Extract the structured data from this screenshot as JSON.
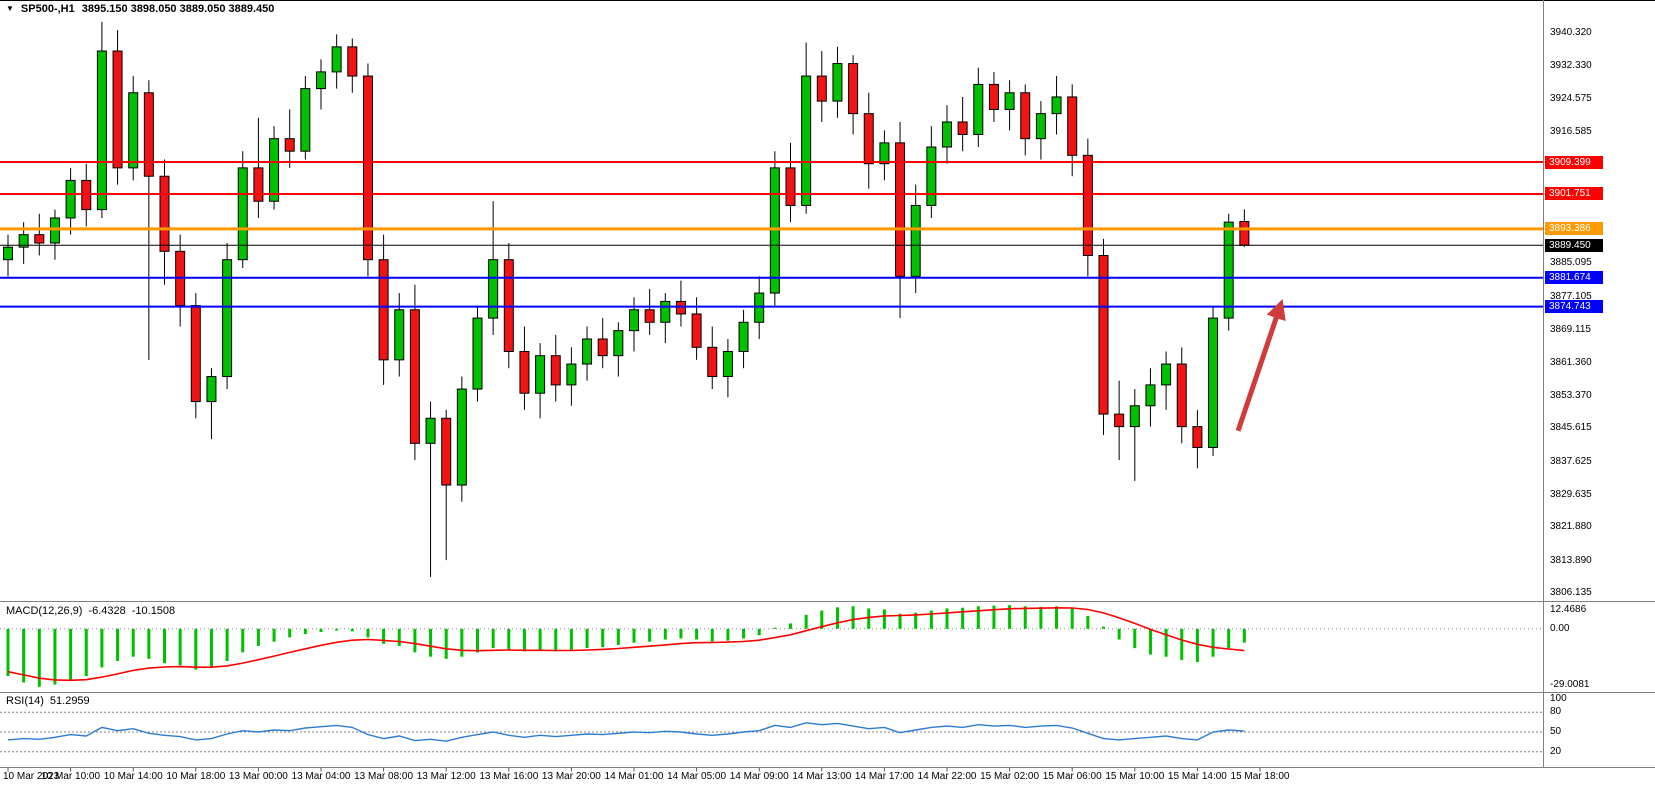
{
  "header": {
    "dropdown_icon": "▼",
    "symbol": "SP500-,H1",
    "ohlc": "3895.150 3898.050 3889.050 3889.450"
  },
  "colors": {
    "background": "#FFFFFF",
    "bull": "#00C000",
    "bear": "#F01414",
    "outline": "#000000",
    "macd_histogram": "#00C000",
    "macd_signal": "#FF0000",
    "rsi_line": "#2B7CD3",
    "arrow": "#D23B3B",
    "separator": "#808080"
  },
  "chart_data": {
    "type": "candlestick",
    "title": "SP500-,H1",
    "timeframe": "H1",
    "legend_position": "none",
    "grid": "off",
    "price_range": [
      3806.135,
      3940.32
    ],
    "candles": [
      [
        3886,
        3892,
        3882,
        3889
      ],
      [
        3889,
        3895,
        3885,
        3892
      ],
      [
        3892,
        3897,
        3887,
        3890
      ],
      [
        3890,
        3898,
        3886,
        3896
      ],
      [
        3896,
        3908,
        3892,
        3905
      ],
      [
        3905,
        3909,
        3894,
        3898
      ],
      [
        3898,
        3943,
        3896,
        3936
      ],
      [
        3936,
        3941,
        3904,
        3908
      ],
      [
        3908,
        3930,
        3905,
        3926
      ],
      [
        3926,
        3929,
        3862,
        3906
      ],
      [
        3906,
        3910,
        3880,
        3888
      ],
      [
        3888,
        3892,
        3870,
        3875
      ],
      [
        3875,
        3878,
        3848,
        3852
      ],
      [
        3852,
        3860,
        3843,
        3858
      ],
      [
        3858,
        3890,
        3855,
        3886
      ],
      [
        3886,
        3912,
        3884,
        3908
      ],
      [
        3908,
        3920,
        3896,
        3900
      ],
      [
        3900,
        3918,
        3898,
        3915
      ],
      [
        3915,
        3922,
        3908,
        3912
      ],
      [
        3912,
        3930,
        3910,
        3927
      ],
      [
        3927,
        3934,
        3922,
        3931
      ],
      [
        3931,
        3940,
        3927,
        3937
      ],
      [
        3937,
        3939,
        3926,
        3930
      ],
      [
        3930,
        3933,
        3882,
        3886
      ],
      [
        3886,
        3892,
        3856,
        3862
      ],
      [
        3862,
        3878,
        3858,
        3874
      ],
      [
        3874,
        3880,
        3838,
        3842
      ],
      [
        3842,
        3852,
        3810,
        3848
      ],
      [
        3848,
        3850,
        3814,
        3832
      ],
      [
        3832,
        3858,
        3828,
        3855
      ],
      [
        3855,
        3875,
        3852,
        3872
      ],
      [
        3872,
        3900,
        3868,
        3886
      ],
      [
        3886,
        3890,
        3860,
        3864
      ],
      [
        3864,
        3870,
        3850,
        3854
      ],
      [
        3854,
        3866,
        3848,
        3863
      ],
      [
        3863,
        3868,
        3852,
        3856
      ],
      [
        3856,
        3865,
        3851,
        3861
      ],
      [
        3861,
        3870,
        3857,
        3867
      ],
      [
        3867,
        3872,
        3860,
        3863
      ],
      [
        3863,
        3871,
        3858,
        3869
      ],
      [
        3869,
        3877,
        3864,
        3874
      ],
      [
        3874,
        3879,
        3868,
        3871
      ],
      [
        3871,
        3878,
        3866,
        3876
      ],
      [
        3876,
        3881,
        3870,
        3873
      ],
      [
        3873,
        3877,
        3862,
        3865
      ],
      [
        3865,
        3870,
        3855,
        3858
      ],
      [
        3858,
        3867,
        3853,
        3864
      ],
      [
        3864,
        3874,
        3860,
        3871
      ],
      [
        3871,
        3882,
        3867,
        3878
      ],
      [
        3878,
        3912,
        3875,
        3908
      ],
      [
        3908,
        3914,
        3895,
        3899
      ],
      [
        3899,
        3938,
        3897,
        3930
      ],
      [
        3930,
        3936,
        3919,
        3924
      ],
      [
        3924,
        3937,
        3920,
        3933
      ],
      [
        3933,
        3935,
        3916,
        3921
      ],
      [
        3921,
        3926,
        3903,
        3909
      ],
      [
        3909,
        3917,
        3905,
        3914
      ],
      [
        3914,
        3919,
        3872,
        3882
      ],
      [
        3882,
        3904,
        3878,
        3899
      ],
      [
        3899,
        3918,
        3896,
        3913
      ],
      [
        3913,
        3923,
        3909,
        3919
      ],
      [
        3919,
        3925,
        3912,
        3916
      ],
      [
        3916,
        3932,
        3913,
        3928
      ],
      [
        3928,
        3931,
        3919,
        3922
      ],
      [
        3922,
        3929,
        3917,
        3926
      ],
      [
        3926,
        3928,
        3911,
        3915
      ],
      [
        3915,
        3924,
        3910,
        3921
      ],
      [
        3921,
        3930,
        3916,
        3925
      ],
      [
        3925,
        3928,
        3906,
        3911
      ],
      [
        3911,
        3915,
        3882,
        3887
      ],
      [
        3887,
        3891,
        3844,
        3849
      ],
      [
        3849,
        3857,
        3838,
        3846
      ],
      [
        3846,
        3855,
        3833,
        3851
      ],
      [
        3851,
        3860,
        3846,
        3856
      ],
      [
        3856,
        3864,
        3850,
        3861
      ],
      [
        3861,
        3865,
        3842,
        3846
      ],
      [
        3846,
        3850,
        3836,
        3841
      ],
      [
        3841,
        3875,
        3839,
        3872
      ],
      [
        3872,
        3897,
        3869,
        3895
      ],
      [
        3895.15,
        3898.05,
        3889.05,
        3889.45
      ]
    ],
    "time_labels": [
      "10 Mar 2023",
      "10 Mar 10:00",
      "10 Mar 14:00",
      "10 Mar 18:00",
      "13 Mar 00:00",
      "13 Mar 04:00",
      "13 Mar 08:00",
      "13 Mar 12:00",
      "13 Mar 16:00",
      "13 Mar 20:00",
      "14 Mar 01:00",
      "14 Mar 05:00",
      "14 Mar 09:00",
      "14 Mar 13:00",
      "14 Mar 17:00",
      "14 Mar 22:00",
      "15 Mar 02:00",
      "15 Mar 06:00",
      "15 Mar 10:00",
      "15 Mar 14:00",
      "15 Mar 18:00"
    ],
    "price_axis_ticks": [
      "3940.320",
      "3932.330",
      "3924.575",
      "3916.585",
      "3885.095",
      "3877.105",
      "3869.115",
      "3861.360",
      "3853.370",
      "3845.615",
      "3837.625",
      "3829.635",
      "3821.880",
      "3813.890",
      "3806.135"
    ],
    "price_badges": [
      {
        "value": "3909.399",
        "color": "#FF0000"
      },
      {
        "value": "3901.751",
        "color": "#FF0000"
      },
      {
        "value": "3893.386",
        "color": "#FF9900"
      },
      {
        "value": "3889.450",
        "color": "#000000"
      },
      {
        "value": "3881.674",
        "color": "#0000FF"
      },
      {
        "value": "3874.743",
        "color": "#0000FF"
      }
    ],
    "levels": [
      {
        "price": 3909.399,
        "color": "#FF0000",
        "width": 2
      },
      {
        "price": 3901.751,
        "color": "#FF0000",
        "width": 2
      },
      {
        "price": 3893.386,
        "color": "#FF9900",
        "width": 3
      },
      {
        "price": 3889.45,
        "color": "#000000",
        "width": 1
      },
      {
        "price": 3881.674,
        "color": "#0000FF",
        "width": 2
      },
      {
        "price": 3874.743,
        "color": "#0000FF",
        "width": 2
      }
    ],
    "arrow": {
      "from_bar": 78.6,
      "from_price": 3845,
      "to_bar": 81.3,
      "to_price": 3875,
      "color": "#D23B3B"
    },
    "indicators": {
      "macd": {
        "name": "MACD(12,26,9)",
        "current_macd": "-6.4328",
        "current_signal": "-10.1508",
        "axis_labels": [
          "12.4686",
          "0.00",
          "-29.0081"
        ],
        "histogram": [
          -22,
          -25,
          -27,
          -26,
          -24,
          -22,
          -18,
          -15,
          -13,
          -14,
          -16,
          -17,
          -19,
          -18,
          -15,
          -11,
          -8,
          -6,
          -4,
          -2.5,
          -1.5,
          -0.8,
          -1.2,
          -4,
          -7,
          -8,
          -11,
          -13,
          -14,
          -13,
          -11,
          -9,
          -9.5,
          -10.5,
          -10,
          -10.5,
          -10,
          -9,
          -8.5,
          -7.5,
          -6.5,
          -6,
          -5,
          -4.5,
          -5,
          -6,
          -5.5,
          -4.5,
          -3,
          0.5,
          2.5,
          6.5,
          8.5,
          10,
          10.5,
          9.5,
          9,
          7,
          7.5,
          8.5,
          9.5,
          9.8,
          10.5,
          10.8,
          11,
          10.5,
          10.2,
          10.5,
          9.5,
          6,
          1,
          -5,
          -9,
          -12,
          -13,
          -14.5,
          -15.5,
          -13,
          -9,
          -6.4328
        ],
        "signal": [
          -20,
          -21.5,
          -23,
          -23.8,
          -24,
          -23.7,
          -22.5,
          -21,
          -19.4,
          -18.3,
          -17.8,
          -17.6,
          -17.9,
          -17.9,
          -17.3,
          -16,
          -14.4,
          -12.7,
          -11,
          -9.3,
          -7.7,
          -6.3,
          -5.3,
          -5,
          -5.4,
          -5.9,
          -6.9,
          -8.1,
          -9.3,
          -10,
          -10.2,
          -10,
          -9.9,
          -10,
          -10,
          -10.1,
          -10.1,
          -9.9,
          -9.6,
          -9.2,
          -8.6,
          -8.1,
          -7.5,
          -6.9,
          -6.5,
          -6.4,
          -6.2,
          -5.9,
          -5.3,
          -4.1,
          -2.8,
          -0.9,
          1,
          2.8,
          4.3,
          5.3,
          6,
          6.2,
          6.5,
          6.9,
          7.4,
          7.9,
          8.4,
          8.9,
          9.3,
          9.5,
          9.6,
          9.8,
          9.7,
          9,
          7.4,
          5.1,
          2.5,
          -0.3,
          -2.8,
          -5.2,
          -7.2,
          -8.6,
          -9.4,
          -10.1508
        ]
      },
      "rsi": {
        "name": "RSI(14)",
        "current": "51.2959",
        "axis_labels": [
          "100",
          "80",
          "50",
          "20"
        ],
        "axis_values": [
          100,
          80,
          50,
          20
        ],
        "levels": [
          80,
          50,
          20
        ],
        "values": [
          38,
          40,
          39,
          42,
          46,
          44,
          57,
          52,
          55,
          48,
          45,
          43,
          38,
          40,
          47,
          52,
          50,
          53,
          52,
          56,
          58,
          60,
          57,
          46,
          40,
          44,
          37,
          39,
          36,
          42,
          46,
          50,
          45,
          42,
          45,
          43,
          45,
          47,
          46,
          48,
          50,
          49,
          51,
          50,
          47,
          45,
          47,
          50,
          52,
          60,
          57,
          64,
          61,
          63,
          59,
          55,
          57,
          49,
          53,
          57,
          59,
          57,
          61,
          59,
          60,
          57,
          59,
          60,
          56,
          48,
          40,
          38,
          40,
          42,
          44,
          40,
          38,
          50,
          53,
          51.2959
        ]
      }
    }
  }
}
